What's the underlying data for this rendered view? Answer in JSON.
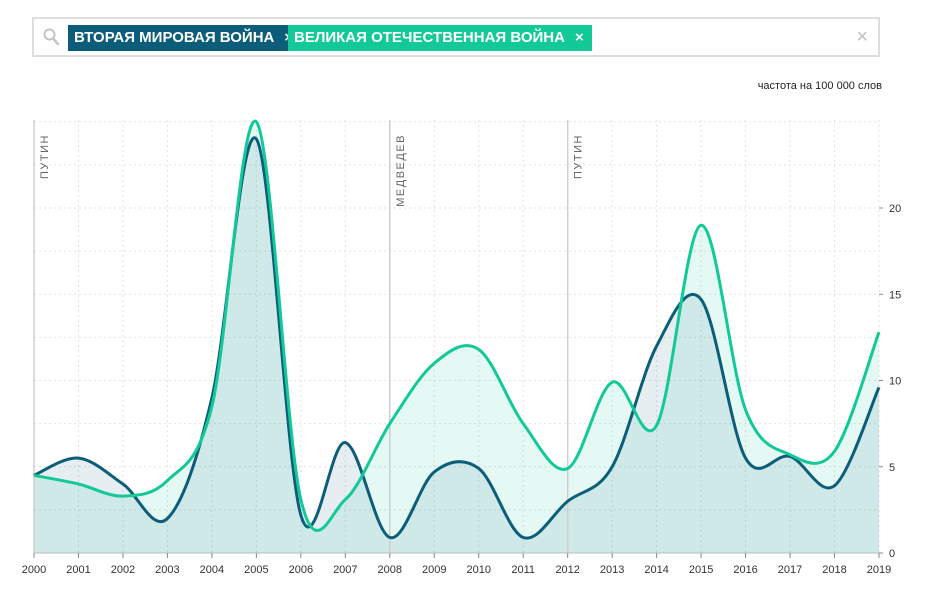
{
  "search": {
    "tags": [
      {
        "label": "ВТОРАЯ МИРОВАЯ ВОЙНА",
        "close": "×",
        "color": "#0c5d7a"
      },
      {
        "label": "ВЕЛИКАЯ ОТЕЧЕСТВЕННАЯ ВОЙНА",
        "close": "×",
        "color": "#12c997"
      }
    ],
    "clear": "×",
    "icons": {
      "search": "search-icon",
      "clear": "close-icon"
    }
  },
  "unit_label": "частота на 100 000 слов",
  "chart_data": {
    "type": "area",
    "x": [
      2000,
      2001,
      2002,
      2003,
      2004,
      2005,
      2006,
      2007,
      2008,
      2009,
      2010,
      2011,
      2012,
      2013,
      2014,
      2015,
      2016,
      2017,
      2018,
      2019
    ],
    "x_tick_labels": [
      "2000",
      "2001",
      "2002",
      "2003",
      "2004",
      "2005",
      "2006",
      "2007",
      "2008",
      "2009",
      "2010",
      "2011",
      "2012",
      "2013",
      "2014",
      "2015",
      "2016",
      "2017",
      "2018",
      "2019"
    ],
    "y_ticks": [
      0,
      5,
      10,
      15,
      20
    ],
    "ylim": [
      0,
      25
    ],
    "y_axis_position": "right",
    "grid": true,
    "series": [
      {
        "name": "ВТОРАЯ МИРОВАЯ ВОЙНА",
        "color": "#0c5d7a",
        "values": [
          4.5,
          5.5,
          4.0,
          2.0,
          9.0,
          24.0,
          2.2,
          6.4,
          0.9,
          4.7,
          4.9,
          0.9,
          3.0,
          5.0,
          12.0,
          14.7,
          5.5,
          5.6,
          3.9,
          9.6
        ]
      },
      {
        "name": "ВЕЛИКАЯ ОТЕЧЕСТВЕННАЯ ВОЙНА",
        "color": "#12c997",
        "values": [
          4.5,
          4.0,
          3.3,
          4.2,
          8.5,
          25.0,
          3.1,
          3.1,
          7.5,
          11.0,
          11.8,
          7.5,
          4.9,
          9.9,
          7.4,
          19.0,
          8.3,
          5.7,
          5.9,
          12.8
        ]
      }
    ],
    "annotations": [
      {
        "label": "ПУТИН",
        "x": 2000
      },
      {
        "label": "МЕДВЕДЕВ",
        "x": 2008
      },
      {
        "label": "ПУТИН",
        "x": 2012
      }
    ]
  }
}
